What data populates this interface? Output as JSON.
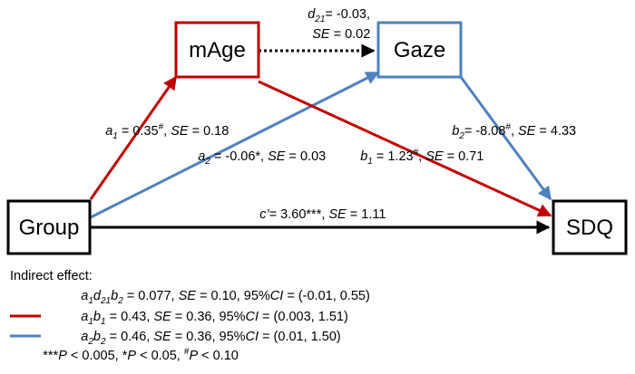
{
  "nodes": {
    "mage": "mAge",
    "gaze": "Gaze",
    "group": "Group",
    "sdq": "SDQ"
  },
  "edges": {
    "d21": {
      "symbol": "d",
      "sub": "21",
      "value": "= -0.03,",
      "se_label": "SE",
      "se_value": " = 0.02"
    },
    "a1": {
      "symbol": "a",
      "sub": "1",
      "value": " = 0.35",
      "sup": "#",
      "sep": ", ",
      "se_label": "SE",
      "se_value": " = 0.18"
    },
    "a2": {
      "symbol": "a",
      "sub": "2",
      "value": " = -0.06*, ",
      "se_label": "SE",
      "se_value": " = 0.03"
    },
    "b1": {
      "symbol": "b",
      "sub": "1",
      "value": " = 1.23",
      "sup": "#",
      "sep": ", ",
      "se_label": "SE",
      "se_value": " = 0.71"
    },
    "b2": {
      "symbol": "b",
      "sub": "2",
      "value": "= -8.08",
      "sup": "#",
      "sep": ", ",
      "se_label": "SE",
      "se_value": " = 4.33"
    },
    "c": {
      "symbol": "c’",
      "value": "= 3.60***, ",
      "se_label": "SE",
      "se_value": " = 1.11"
    }
  },
  "legend": {
    "title": "Indirect effect:",
    "rows": [
      {
        "path_a": "a",
        "sub_a": "1",
        "path_d": "d",
        "sub_d": "21",
        "path_b": "b",
        "sub_b": "2",
        "value": " = 0.077, ",
        "se_label": "SE",
        "se_value": " = 0.10, 95%",
        "ci_label": "CI",
        "ci_value": " = (-0.01, 0.55)"
      },
      {
        "path_a": "a",
        "sub_a": "1",
        "path_b": "b",
        "sub_b": "1",
        "value": " = 0.43, ",
        "se_label": "SE",
        "se_value": " = 0.36, 95%",
        "ci_label": "CI",
        "ci_value": " = (0.003, 1.51)"
      },
      {
        "path_a": "a",
        "sub_a": "2",
        "path_b": "b",
        "sub_b": "2",
        "value": " = 0.46, ",
        "se_label": "SE",
        "se_value": " = 0.36, 95%",
        "ci_label": "CI",
        "ci_value": " = (0.01, 1.50)"
      }
    ],
    "note": {
      "stars3": "***",
      "p1": "P",
      "t1": " < 0.005, *",
      "p2": "P",
      "t2": " < 0.05, ",
      "hash": "#",
      "p3": "P",
      "t3": " < 0.10"
    }
  },
  "colors": {
    "red": "#c00000",
    "blue": "#4f81bd",
    "black": "#000000"
  }
}
